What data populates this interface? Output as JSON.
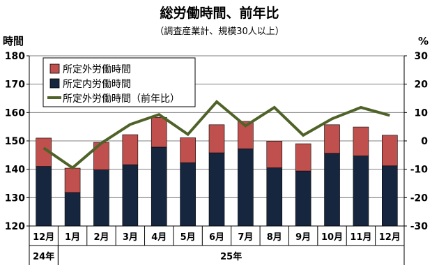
{
  "chart_data": {
    "type": "bar",
    "title": "総労働時間、前年比",
    "subtitle": "（調査産業計、規模30人以上）",
    "ylabel_left": "時間",
    "ylabel_right": "%",
    "ylim_left": [
      120,
      180
    ],
    "yticks_left": [
      "120",
      "130",
      "140",
      "150",
      "160",
      "170",
      "180"
    ],
    "ylim_right": [
      -30,
      30
    ],
    "yticks_right": [
      "-30",
      "-20",
      "-10",
      "0",
      "10",
      "20",
      "30"
    ],
    "categories": [
      "12月",
      "1月",
      "2月",
      "3月",
      "4月",
      "5月",
      "6月",
      "7月",
      "8月",
      "9月",
      "10月",
      "11月",
      "12月"
    ],
    "year_labels": [
      {
        "label": "24年",
        "start": 0,
        "end": 0
      },
      {
        "label": "25年",
        "start": 1,
        "end": 12
      }
    ],
    "series": [
      {
        "name": "所定外労働時間",
        "kind": "stacked-bar",
        "axis": "left",
        "color": "#c0504d",
        "values": [
          10.0,
          8.6,
          9.7,
          10.6,
          10.5,
          8.8,
          9.9,
          9.7,
          9.4,
          9.6,
          10.1,
          10.2,
          10.8
        ]
      },
      {
        "name": "所定内労働時間",
        "kind": "stacked-bar",
        "axis": "left",
        "color": "#17263f",
        "values": [
          141.0,
          131.8,
          139.8,
          141.6,
          147.8,
          142.3,
          145.8,
          147.2,
          140.5,
          139.4,
          145.6,
          144.7,
          141.2
        ]
      },
      {
        "name": "所定外労働時間（前年比）",
        "kind": "line",
        "axis": "right",
        "color": "#4f6228",
        "values": [
          -2.5,
          -9.5,
          -0.8,
          5.8,
          9.3,
          2.3,
          13.8,
          5.3,
          11.8,
          2.0,
          7.8,
          11.8,
          9.0
        ]
      }
    ],
    "legend_position": "top-left",
    "grid": true
  }
}
